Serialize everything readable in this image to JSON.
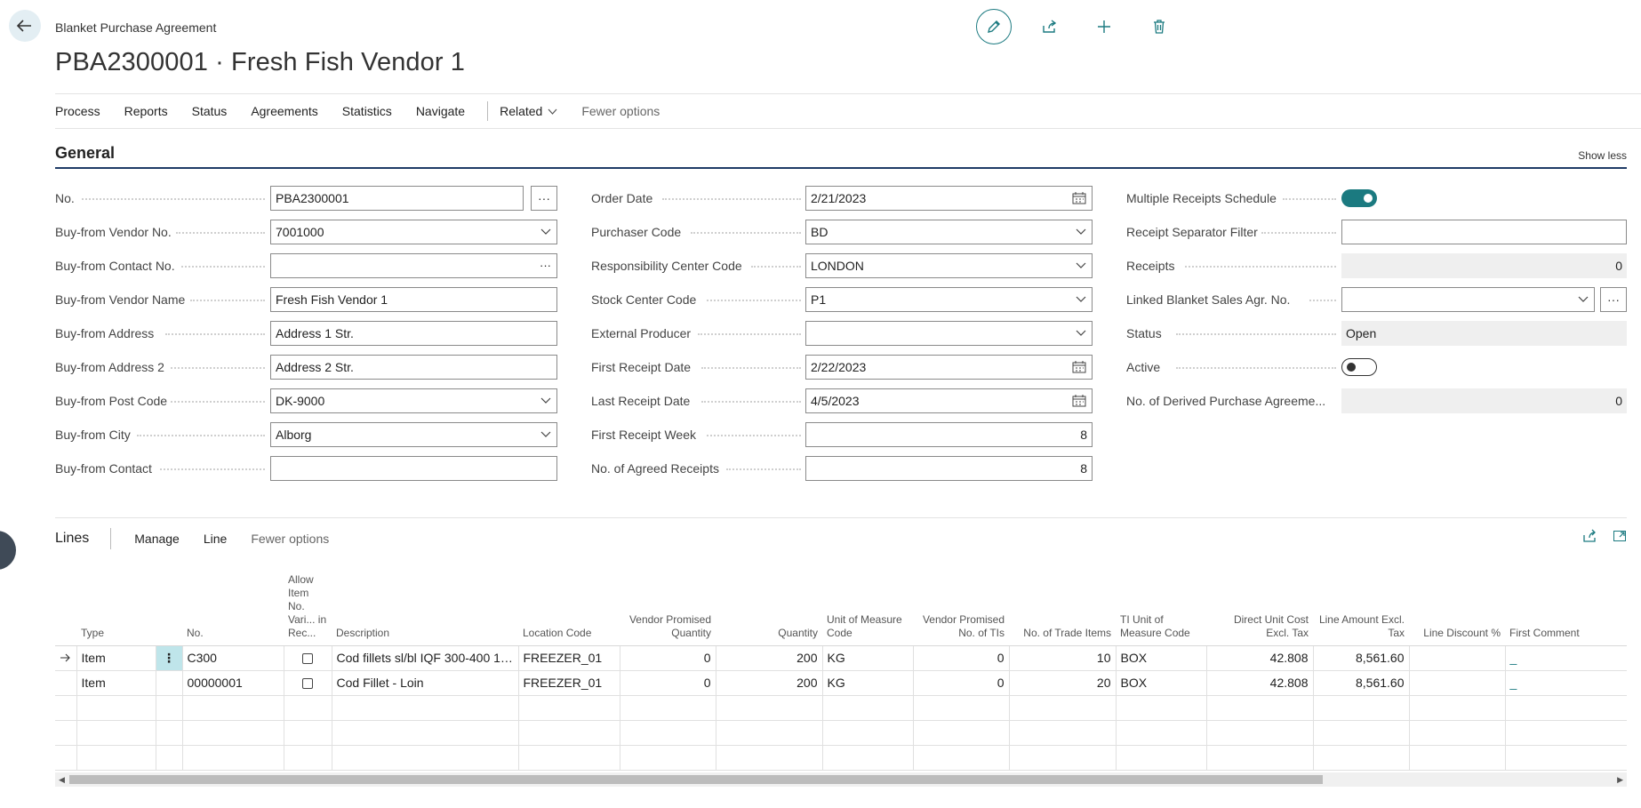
{
  "header": {
    "breadcrumb": "Blanket Purchase Agreement",
    "title": "PBA2300001 · Fresh Fish Vendor 1"
  },
  "actionbar": {
    "items": [
      "Process",
      "Reports",
      "Status",
      "Agreements",
      "Statistics",
      "Navigate"
    ],
    "related": "Related",
    "fewer": "Fewer options"
  },
  "general": {
    "title": "General",
    "show_less": "Show less",
    "col1": [
      {
        "label": "No.",
        "value": "PBA2300001"
      },
      {
        "label": "Buy-from Vendor No.",
        "value": "7001000"
      },
      {
        "label": "Buy-from Contact No.",
        "value": ""
      },
      {
        "label": "Buy-from Vendor Name",
        "value": "Fresh Fish Vendor 1"
      },
      {
        "label": "Buy-from Address",
        "value": "Address 1 Str."
      },
      {
        "label": "Buy-from Address 2",
        "value": "Address 2 Str."
      },
      {
        "label": "Buy-from Post Code",
        "value": "DK-9000"
      },
      {
        "label": "Buy-from City",
        "value": "Alborg"
      },
      {
        "label": "Buy-from Contact",
        "value": ""
      }
    ],
    "col2": [
      {
        "label": "Order Date",
        "value": "2/21/2023"
      },
      {
        "label": "Purchaser Code",
        "value": "BD"
      },
      {
        "label": "Responsibility Center Code",
        "value": "LONDON"
      },
      {
        "label": "Stock Center Code",
        "value": "P1"
      },
      {
        "label": "External Producer",
        "value": ""
      },
      {
        "label": "First Receipt Date",
        "value": "2/22/2023"
      },
      {
        "label": "Last Receipt Date",
        "value": "4/5/2023"
      },
      {
        "label": "First Receipt Week",
        "value": "8"
      },
      {
        "label": "No. of Agreed Receipts",
        "value": "8"
      }
    ],
    "col3": [
      {
        "label": "Multiple Receipts Schedule",
        "value": "on"
      },
      {
        "label": "Receipt Separator Filter",
        "value": ""
      },
      {
        "label": "Receipts",
        "value": "0"
      },
      {
        "label": "Linked Blanket Sales Agr. No.",
        "value": ""
      },
      {
        "label": "Status",
        "value": "Open"
      },
      {
        "label": "Active",
        "value": "off"
      },
      {
        "label": "No. of Derived Purchase Agreeme...",
        "value": "0"
      }
    ]
  },
  "lines": {
    "title": "Lines",
    "actions": [
      "Manage",
      "Line"
    ],
    "fewer": "Fewer options",
    "columns": [
      "",
      "Type",
      "",
      "No.",
      "Allow Item No. Vari... in Rec...",
      "Description",
      "Location Code",
      "Vendor Promised Quantity",
      "Quantity",
      "Unit of Measure Code",
      "Vendor Promised No. of TIs",
      "No. of Trade Items",
      "TI Unit of Measure Code",
      "Direct Unit Cost Excl. Tax",
      "Line Amount Excl. Tax",
      "Line Discount %",
      "First Comment"
    ],
    "rows": [
      {
        "type": "Item",
        "no": "C300",
        "description": "Cod fillets sl/bl IQF 300-400 1x...",
        "location": "FREEZER_01",
        "vendor_qty": "0",
        "quantity": "200",
        "uom": "KG",
        "vendor_tis": "0",
        "trade_items": "10",
        "ti_uom": "BOX",
        "unit_cost": "42.808",
        "line_amount": "8,561.60",
        "discount": "",
        "comment": "_"
      },
      {
        "type": "Item",
        "no": "00000001",
        "description": "Cod Fillet - Loin",
        "location": "FREEZER_01",
        "vendor_qty": "0",
        "quantity": "200",
        "uom": "KG",
        "vendor_tis": "0",
        "trade_items": "20",
        "ti_uom": "BOX",
        "unit_cost": "42.808",
        "line_amount": "8,561.60",
        "discount": "",
        "comment": "_"
      }
    ]
  },
  "colors": {
    "accent": "#1b7a80",
    "section_underline": "#1f3b66",
    "row_menu": "#bfe5ea"
  }
}
